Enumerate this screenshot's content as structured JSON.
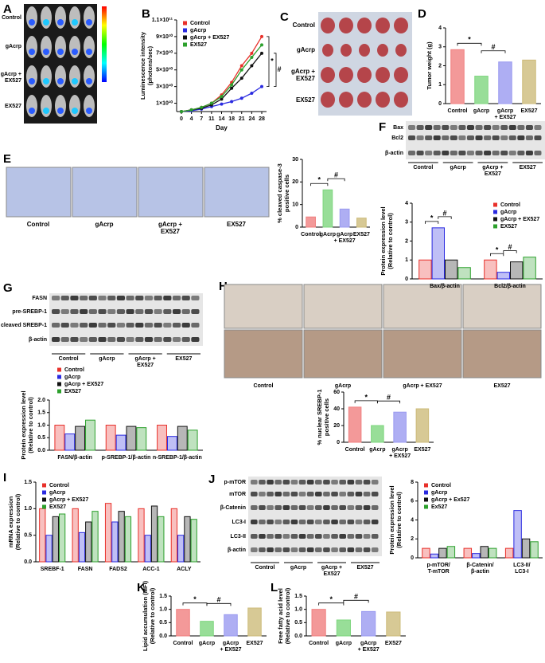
{
  "chart_data": [
    {
      "type": "line",
      "panel": "B",
      "ylabel": [
        "Luminescence intensity",
        "(photons/sec)"
      ],
      "xlabel": "Day",
      "categories": [
        "0",
        "4",
        "7",
        "11",
        "14",
        "18",
        "21",
        "24",
        "28"
      ],
      "ylim": [
        0,
        110000000000
      ],
      "yticks": [
        {
          "value": 10000000000,
          "label": "1×10¹⁰"
        },
        {
          "value": 30000000000,
          "label": "3×10¹⁰"
        },
        {
          "value": 50000000000,
          "label": "5×10¹⁰"
        },
        {
          "value": 70000000000,
          "label": "7×10¹⁰"
        },
        {
          "value": 90000000000,
          "label": "9×10¹⁰"
        },
        {
          "value": 110000000000,
          "label": "1.1×10¹¹"
        }
      ],
      "legend": "top-left",
      "series": [
        {
          "name": "Control",
          "color": "#e8302a",
          "values": [
            0,
            2000000000,
            5000000000,
            10000000000,
            20000000000,
            35000000000,
            55000000000,
            70000000000,
            90000000000
          ]
        },
        {
          "name": "gAcrp",
          "color": "#2a2ae0",
          "values": [
            0,
            1000000000,
            3000000000,
            6000000000,
            9000000000,
            12000000000,
            16000000000,
            22000000000,
            30000000000
          ]
        },
        {
          "name": "gAcrp + EX527",
          "color": "#111111",
          "values": [
            0,
            2000000000,
            4000000000,
            8000000000,
            15000000000,
            28000000000,
            40000000000,
            55000000000,
            70000000000
          ]
        },
        {
          "name": "EX527",
          "color": "#2ca02c",
          "values": [
            0,
            2000000000,
            5000000000,
            10000000000,
            18000000000,
            32000000000,
            50000000000,
            65000000000,
            80000000000
          ]
        }
      ],
      "annotations": [
        "*",
        "#"
      ]
    },
    {
      "type": "bar",
      "panel": "D",
      "ylabel": [
        "Tumor weight (g)"
      ],
      "categories": [
        "Control",
        "gAcrp",
        [
          "gAcrp",
          "+ EX527"
        ],
        "EX527"
      ],
      "values": [
        2.85,
        1.45,
        2.2,
        2.3
      ],
      "colors": [
        "#f08080",
        "#7ed67e",
        "#9a9af0",
        "#cdbb7a"
      ],
      "ylim": [
        0,
        4
      ],
      "yticks": [
        0,
        1,
        2,
        3,
        4
      ],
      "annotations": [
        "*",
        "#"
      ]
    },
    {
      "type": "bar",
      "ylabel": [
        "% cleaved caspase-3",
        "positive cells"
      ],
      "categories": [
        "Control",
        "gAcrp",
        [
          "gAcrp",
          "+ EX527"
        ],
        "EX527"
      ],
      "values": [
        4.5,
        16.5,
        8,
        4
      ],
      "colors": [
        "#f08080",
        "#7ed67e",
        "#9a9af0",
        "#cdbb7a"
      ],
      "ylim": [
        0,
        30
      ],
      "yticks": [
        0,
        10,
        20,
        30
      ],
      "annotations": [
        "*",
        "#"
      ]
    },
    {
      "type": "grouped_bar",
      "ylabel": [
        "Protein expression level",
        "(Relative to control)"
      ],
      "categories": [
        "Bax/β-actin",
        "Bcl2/β-actin"
      ],
      "ylim": [
        0,
        4
      ],
      "yticks": [
        0,
        1,
        2,
        3,
        4
      ],
      "legend": "top-right",
      "series": [
        {
          "name": "Control",
          "color": "#e8302a",
          "values": [
            1,
            1
          ]
        },
        {
          "name": "gAcrp",
          "color": "#2a2ae0",
          "values": [
            2.7,
            0.35
          ]
        },
        {
          "name": "gAcrp + EX527",
          "color": "#111111",
          "values": [
            1,
            0.9
          ]
        },
        {
          "name": "EX527",
          "color": "#2ca02c",
          "values": [
            0.6,
            1.15
          ]
        }
      ],
      "annotations": [
        "*",
        "#",
        "*",
        "#"
      ]
    },
    {
      "type": "grouped_bar",
      "ylabel": [
        "Protein expression level",
        "(Relative to control)"
      ],
      "categories": [
        "FASN/β-actin",
        "p-SREBP-1/β-actin",
        "n-SREBP-1/β-actin"
      ],
      "ylim": [
        0,
        2
      ],
      "yticks": [
        {
          "value": 0,
          "label": "0.0"
        },
        0.5,
        {
          "value": 1,
          "label": "1.0"
        },
        1.5,
        {
          "value": 2,
          "label": "2.0"
        }
      ],
      "legend": "above",
      "series": [
        {
          "name": "Control",
          "color": "#e8302a",
          "values": [
            1,
            1,
            1
          ]
        },
        {
          "name": "gAcrp",
          "color": "#2a2ae0",
          "values": [
            0.65,
            0.6,
            0.55
          ]
        },
        {
          "name": "gAcrp + EX527",
          "color": "#111111",
          "values": [
            0.95,
            0.95,
            0.95
          ]
        },
        {
          "name": "EX527",
          "color": "#2ca02c",
          "values": [
            1.2,
            0.9,
            0.8
          ]
        }
      ]
    },
    {
      "type": "bar",
      "ylabel": [
        "% nuclear SREBP-1",
        "positive cells"
      ],
      "categories": [
        "Control",
        "gAcrp",
        [
          "gAcrp",
          "+ EX527"
        ],
        "EX527"
      ],
      "values": [
        42,
        20,
        36,
        40
      ],
      "colors": [
        "#f08080",
        "#7ed67e",
        "#9a9af0",
        "#cdbb7a"
      ],
      "ylim": [
        0,
        60
      ],
      "yticks": [
        0,
        20,
        40,
        60
      ],
      "annotations": [
        "*",
        "#"
      ]
    },
    {
      "type": "grouped_bar",
      "panel": "I",
      "ylabel": [
        "mRNA expression",
        "(Relative to control)"
      ],
      "categories": [
        "SREBF-1",
        "FASN",
        "FADS2",
        "ACC-1",
        "ACLY"
      ],
      "ylim": [
        0,
        1.5
      ],
      "yticks": [
        {
          "value": 0,
          "label": "0.0"
        },
        0.5,
        {
          "value": 1,
          "label": "1.0"
        },
        1.5
      ],
      "legend": "top-left",
      "series": [
        {
          "name": "Control",
          "color": "#e8302a",
          "values": [
            1,
            1,
            1.1,
            1,
            1
          ]
        },
        {
          "name": "gAcrp",
          "color": "#2a2ae0",
          "values": [
            0.5,
            0.55,
            0.75,
            0.5,
            0.5
          ]
        },
        {
          "name": "gAcrp + EX527",
          "color": "#111111",
          "values": [
            0.85,
            0.75,
            0.95,
            1.05,
            0.85
          ]
        },
        {
          "name": "EX527",
          "color": "#2ca02c",
          "values": [
            0.9,
            0.95,
            0.85,
            0.85,
            0.8
          ]
        }
      ]
    },
    {
      "type": "grouped_bar",
      "ylabel": [
        "Protein expression level",
        "(Relative to control)"
      ],
      "categories": [
        [
          "p-mTOR/",
          "T-mTOR"
        ],
        [
          "β-Catenin/",
          "β-actin"
        ],
        [
          "LC3-II/",
          "LC3-I"
        ]
      ],
      "ylim": [
        0,
        8
      ],
      "yticks": [
        0,
        2,
        4,
        6,
        8
      ],
      "legend": "top-left",
      "series": [
        {
          "name": "Control",
          "color": "#e8302a",
          "values": [
            1,
            1,
            1
          ]
        },
        {
          "name": "gAcrp",
          "color": "#2a2ae0",
          "values": [
            0.4,
            0.45,
            5
          ]
        },
        {
          "name": "gAcrp + Ex527",
          "color": "#111111",
          "values": [
            1,
            1.2,
            2
          ]
        },
        {
          "name": "Ex527",
          "color": "#2ca02c",
          "values": [
            1.2,
            1,
            1.7
          ]
        }
      ]
    },
    {
      "type": "bar",
      "panel": "K",
      "ylabel": [
        "Lipid accumulation (MFI)",
        "(Relative to control)"
      ],
      "categories": [
        "Control",
        "gAcrp",
        [
          "gAcrp",
          "+ EX527"
        ],
        "EX527"
      ],
      "values": [
        1.0,
        0.55,
        0.8,
        1.05
      ],
      "colors": [
        "#f08080",
        "#7ed67e",
        "#9a9af0",
        "#cdbb7a"
      ],
      "ylim": [
        0,
        1.5
      ],
      "yticks": [
        {
          "value": 0,
          "label": "0.0"
        },
        0.5,
        {
          "value": 1,
          "label": "1.0"
        },
        1.5
      ],
      "annotations": [
        "*",
        "#"
      ]
    },
    {
      "type": "bar",
      "panel": "L",
      "ylabel": [
        "Free fatty acid level",
        "(Relative to control)"
      ],
      "categories": [
        "Control",
        "gAcrp",
        [
          "gAcrp",
          "+ EX527"
        ],
        "EX527"
      ],
      "values": [
        1.0,
        0.6,
        0.92,
        0.9
      ],
      "colors": [
        "#f08080",
        "#7ed67e",
        "#9a9af0",
        "#cdbb7a"
      ],
      "ylim": [
        0,
        1.5
      ],
      "yticks": [
        {
          "value": 0,
          "label": "0.0"
        },
        0.5,
        {
          "value": 1,
          "label": "1.0"
        },
        1.5
      ],
      "annotations": [
        "*",
        "#"
      ]
    }
  ],
  "panels": {
    "A": {
      "letter": "A",
      "rows": [
        "Control",
        "gAcrp",
        [
          "gAcrp +",
          "EX527"
        ],
        "EX527"
      ]
    },
    "C": {
      "letter": "C",
      "rows": [
        "Control",
        "gAcrp",
        [
          "gAcrp +",
          "EX527"
        ],
        "EX527"
      ]
    },
    "E": {
      "letter": "E",
      "labels": [
        "Control",
        "gAcrp",
        [
          "gAcrp +",
          "EX527"
        ],
        "EX527"
      ]
    },
    "F": {
      "letter": "F",
      "bands": [
        "Bax",
        "Bcl2",
        "β-actin"
      ],
      "groups": [
        "Control",
        "gAcrp",
        [
          "gAcrp +",
          "EX527"
        ],
        "EX527"
      ]
    },
    "G": {
      "letter": "G",
      "bands": [
        "FASN",
        "pre-SREBP-1",
        "cleaved SREBP-1",
        "β-actin"
      ],
      "groups": [
        "Control",
        "gAcrp",
        [
          "gAcrp +",
          "EX527"
        ],
        "EX527"
      ]
    },
    "H": {
      "letter": "H",
      "labels": [
        "Control",
        "gAcrp",
        "gAcrp + EX527",
        "EX527"
      ]
    },
    "J": {
      "letter": "J",
      "bands": [
        "p-mTOR",
        "mTOR",
        "β-Catenin",
        "LC3-I",
        "LC3-II",
        "β-actin"
      ],
      "groups": [
        "Control",
        "gAcrp",
        [
          "gAcrp +",
          "EX527"
        ],
        "EX527"
      ]
    }
  }
}
